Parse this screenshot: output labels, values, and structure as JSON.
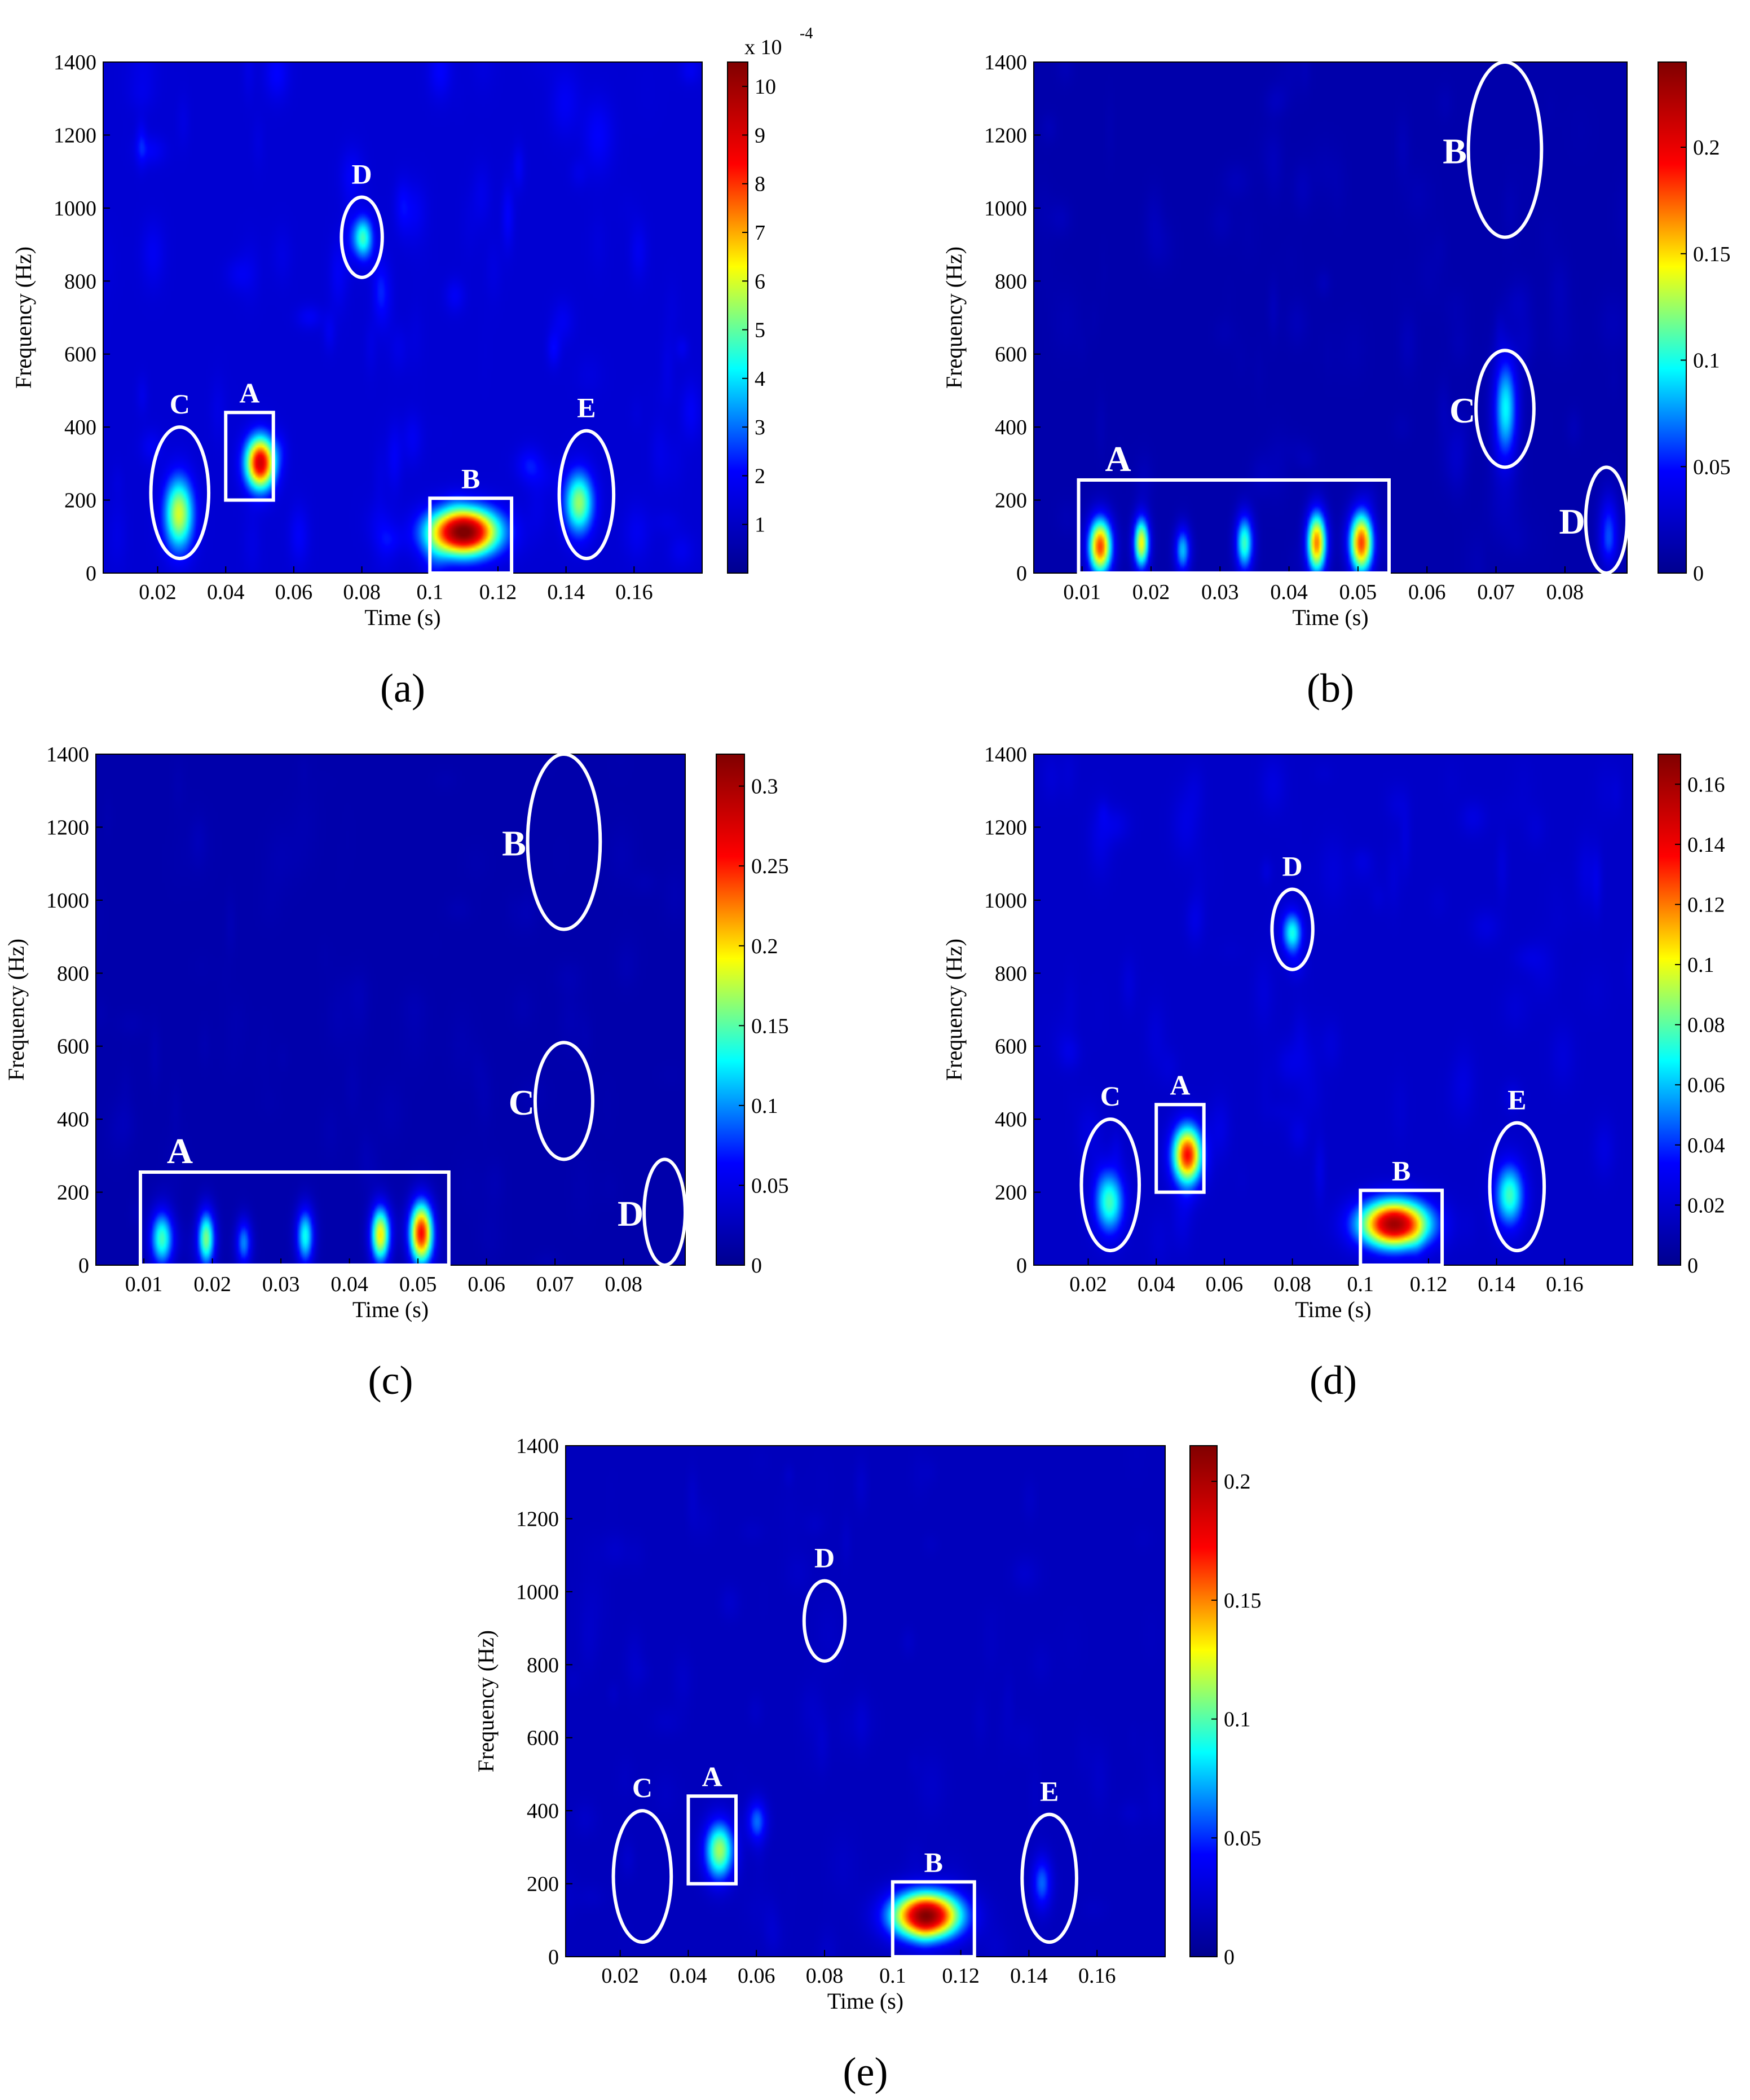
{
  "colormap": [
    "#00008f",
    "#0000ff",
    "#00ffff",
    "#ffff00",
    "#ff0000",
    "#800000"
  ],
  "frame_color": "#ffffff",
  "chart_data": [
    {
      "type": "heatmap",
      "panel_label": "(a)",
      "xlabel": "Time (s)",
      "ylabel": "Frequency (Hz)",
      "xlim": [
        0.004,
        0.18
      ],
      "ylim": [
        0,
        1400
      ],
      "xticks": [
        "0.02",
        "0.04",
        "0.06",
        "0.08",
        "0.1",
        "0.12",
        "0.14",
        "0.16"
      ],
      "yticks": [
        "0",
        "200",
        "400",
        "600",
        "800",
        "1000",
        "1200",
        "1400"
      ],
      "colorbar": {
        "min": 0,
        "max": 10.5,
        "ticks": [
          "1",
          "2",
          "3",
          "4",
          "5",
          "6",
          "7",
          "8",
          "9",
          "10"
        ],
        "multiplier": "x 10",
        "exponent": "-4"
      },
      "background_level": 0.12,
      "noise_level": 0.08,
      "blobs": [
        {
          "t": 0.026,
          "f": 160,
          "st": 0.003,
          "sf": 70,
          "v": 0.45
        },
        {
          "t": 0.05,
          "f": 300,
          "st": 0.003,
          "sf": 50,
          "v": 0.75
        },
        {
          "t": 0.11,
          "f": 110,
          "st": 0.007,
          "sf": 45,
          "v": 0.9
        },
        {
          "t": 0.144,
          "f": 190,
          "st": 0.003,
          "sf": 60,
          "v": 0.4
        },
        {
          "t": 0.08,
          "f": 920,
          "st": 0.002,
          "sf": 40,
          "v": 0.3
        }
      ],
      "annotations": [
        {
          "label": "A",
          "shape": "rect",
          "t0": 0.04,
          "t1": 0.054,
          "f0": 200,
          "f1": 440
        },
        {
          "label": "B",
          "shape": "rect",
          "t0": 0.1,
          "t1": 0.124,
          "f0": 0,
          "f1": 205
        },
        {
          "label": "C",
          "shape": "ellipse",
          "t": 0.0265,
          "f": 220,
          "rt": 0.0085,
          "rf": 180
        },
        {
          "label": "D",
          "shape": "ellipse",
          "t": 0.08,
          "f": 920,
          "rt": 0.006,
          "rf": 110
        },
        {
          "label": "E",
          "shape": "ellipse",
          "t": 0.146,
          "f": 215,
          "rt": 0.008,
          "rf": 175
        }
      ]
    },
    {
      "type": "heatmap",
      "panel_label": "(b)",
      "xlabel": "Time (s)",
      "ylabel": "Frequency (Hz)",
      "xlim": [
        0.003,
        0.089
      ],
      "ylim": [
        0,
        1400
      ],
      "xticks": [
        "0.01",
        "0.02",
        "0.03",
        "0.04",
        "0.05",
        "0.06",
        "0.07",
        "0.08"
      ],
      "yticks": [
        "0",
        "200",
        "400",
        "600",
        "800",
        "1000",
        "1200",
        "1400"
      ],
      "colorbar": {
        "min": 0,
        "max": 0.24,
        "ticks": [
          "0",
          "0.05",
          "0.1",
          "0.15",
          "0.2"
        ]
      },
      "background_level": 0.05,
      "noise_level": 0.03,
      "blobs": [
        {
          "t": 0.0125,
          "f": 70,
          "st": 0.0012,
          "sf": 55,
          "v": 0.7
        },
        {
          "t": 0.0185,
          "f": 80,
          "st": 0.0008,
          "sf": 50,
          "v": 0.55
        },
        {
          "t": 0.0245,
          "f": 60,
          "st": 0.0008,
          "sf": 45,
          "v": 0.3
        },
        {
          "t": 0.0335,
          "f": 80,
          "st": 0.0009,
          "sf": 55,
          "v": 0.4
        },
        {
          "t": 0.044,
          "f": 80,
          "st": 0.001,
          "sf": 60,
          "v": 0.65
        },
        {
          "t": 0.0505,
          "f": 80,
          "st": 0.0012,
          "sf": 60,
          "v": 0.7
        },
        {
          "t": 0.0715,
          "f": 450,
          "st": 0.0012,
          "sf": 100,
          "v": 0.35
        },
        {
          "t": 0.0865,
          "f": 110,
          "st": 0.001,
          "sf": 70,
          "v": 0.2
        }
      ],
      "annotations": [
        {
          "label": "A",
          "shape": "rect",
          "t0": 0.0095,
          "t1": 0.0545,
          "f0": 0,
          "f1": 255
        },
        {
          "label": "B",
          "shape": "ellipse",
          "t": 0.0713,
          "f": 1160,
          "rt": 0.0053,
          "rf": 240
        },
        {
          "label": "C",
          "shape": "ellipse",
          "t": 0.0713,
          "f": 450,
          "rt": 0.0042,
          "rf": 160
        },
        {
          "label": "D",
          "shape": "ellipse",
          "t": 0.086,
          "f": 145,
          "rt": 0.003,
          "rf": 145
        }
      ]
    },
    {
      "type": "heatmap",
      "panel_label": "(c)",
      "xlabel": "Time (s)",
      "ylabel": "Frequency (Hz)",
      "xlim": [
        0.003,
        0.089
      ],
      "ylim": [
        0,
        1400
      ],
      "xticks": [
        "0.01",
        "0.02",
        "0.03",
        "0.04",
        "0.05",
        "0.06",
        "0.07",
        "0.08"
      ],
      "yticks": [
        "0",
        "200",
        "400",
        "600",
        "800",
        "1000",
        "1200",
        "1400"
      ],
      "colorbar": {
        "min": 0,
        "max": 0.32,
        "ticks": [
          "0",
          "0.05",
          "0.1",
          "0.15",
          "0.2",
          "0.25",
          "0.3"
        ]
      },
      "background_level": 0.05,
      "noise_level": 0.02,
      "blobs": [
        {
          "t": 0.0125,
          "f": 70,
          "st": 0.0012,
          "sf": 55,
          "v": 0.4
        },
        {
          "t": 0.019,
          "f": 70,
          "st": 0.0009,
          "sf": 55,
          "v": 0.45
        },
        {
          "t": 0.0245,
          "f": 60,
          "st": 0.0008,
          "sf": 45,
          "v": 0.25
        },
        {
          "t": 0.0335,
          "f": 75,
          "st": 0.0009,
          "sf": 55,
          "v": 0.35
        },
        {
          "t": 0.0445,
          "f": 80,
          "st": 0.001,
          "sf": 55,
          "v": 0.55
        },
        {
          "t": 0.0505,
          "f": 85,
          "st": 0.0012,
          "sf": 60,
          "v": 0.75
        }
      ],
      "annotations": [
        {
          "label": "A",
          "shape": "rect",
          "t0": 0.0095,
          "t1": 0.0545,
          "f0": 0,
          "f1": 255
        },
        {
          "label": "B",
          "shape": "ellipse",
          "t": 0.0713,
          "f": 1160,
          "rt": 0.0053,
          "rf": 240
        },
        {
          "label": "C",
          "shape": "ellipse",
          "t": 0.0713,
          "f": 450,
          "rt": 0.0042,
          "rf": 160
        },
        {
          "label": "D",
          "shape": "ellipse",
          "t": 0.086,
          "f": 145,
          "rt": 0.003,
          "rf": 145
        }
      ]
    },
    {
      "type": "heatmap",
      "panel_label": "(d)",
      "xlabel": "Time (s)",
      "ylabel": "Frequency (Hz)",
      "xlim": [
        0.004,
        0.18
      ],
      "ylim": [
        0,
        1400
      ],
      "xticks": [
        "0.02",
        "0.04",
        "0.06",
        "0.08",
        "0.1",
        "0.12",
        "0.14",
        "0.16"
      ],
      "yticks": [
        "0",
        "200",
        "400",
        "600",
        "800",
        "1000",
        "1200",
        "1400"
      ],
      "colorbar": {
        "min": 0,
        "max": 0.17,
        "ticks": [
          "0",
          "0.02",
          "0.04",
          "0.06",
          "0.08",
          "0.1",
          "0.12",
          "0.14",
          "0.16"
        ]
      },
      "background_level": 0.1,
      "noise_level": 0.05,
      "blobs": [
        {
          "t": 0.026,
          "f": 170,
          "st": 0.003,
          "sf": 60,
          "v": 0.35
        },
        {
          "t": 0.049,
          "f": 300,
          "st": 0.003,
          "sf": 55,
          "v": 0.7
        },
        {
          "t": 0.11,
          "f": 110,
          "st": 0.007,
          "sf": 45,
          "v": 0.85
        },
        {
          "t": 0.144,
          "f": 190,
          "st": 0.003,
          "sf": 60,
          "v": 0.35
        },
        {
          "t": 0.08,
          "f": 910,
          "st": 0.002,
          "sf": 40,
          "v": 0.3
        }
      ],
      "annotations": [
        {
          "label": "A",
          "shape": "rect",
          "t0": 0.04,
          "t1": 0.054,
          "f0": 200,
          "f1": 440
        },
        {
          "label": "B",
          "shape": "rect",
          "t0": 0.1,
          "t1": 0.124,
          "f0": 0,
          "f1": 205
        },
        {
          "label": "C",
          "shape": "ellipse",
          "t": 0.0265,
          "f": 220,
          "rt": 0.0085,
          "rf": 180
        },
        {
          "label": "D",
          "shape": "ellipse",
          "t": 0.08,
          "f": 920,
          "rt": 0.006,
          "rf": 110
        },
        {
          "label": "E",
          "shape": "ellipse",
          "t": 0.146,
          "f": 215,
          "rt": 0.008,
          "rf": 175
        }
      ]
    },
    {
      "type": "heatmap",
      "panel_label": "(e)",
      "xlabel": "Time (s)",
      "ylabel": "Frequency (Hz)",
      "xlim": [
        0.004,
        0.18
      ],
      "ylim": [
        0,
        1400
      ],
      "xticks": [
        "0.02",
        "0.04",
        "0.06",
        "0.08",
        "0.1",
        "0.12",
        "0.14",
        "0.16"
      ],
      "yticks": [
        "0",
        "200",
        "400",
        "600",
        "800",
        "1000",
        "1200",
        "1400"
      ],
      "colorbar": {
        "min": 0,
        "max": 0.215,
        "ticks": [
          "0",
          "0.05",
          "0.1",
          "0.15",
          "0.2"
        ]
      },
      "background_level": 0.08,
      "noise_level": 0.03,
      "blobs": [
        {
          "t": 0.049,
          "f": 290,
          "st": 0.003,
          "sf": 55,
          "v": 0.45
        },
        {
          "t": 0.11,
          "f": 110,
          "st": 0.007,
          "sf": 45,
          "v": 0.9
        },
        {
          "t": 0.144,
          "f": 200,
          "st": 0.002,
          "sf": 50,
          "v": 0.2
        },
        {
          "t": 0.06,
          "f": 370,
          "st": 0.002,
          "sf": 40,
          "v": 0.2
        }
      ],
      "annotations": [
        {
          "label": "A",
          "shape": "rect",
          "t0": 0.04,
          "t1": 0.054,
          "f0": 200,
          "f1": 440
        },
        {
          "label": "B",
          "shape": "rect",
          "t0": 0.1,
          "t1": 0.124,
          "f0": 0,
          "f1": 205
        },
        {
          "label": "C",
          "shape": "ellipse",
          "t": 0.0265,
          "f": 220,
          "rt": 0.0085,
          "rf": 180
        },
        {
          "label": "D",
          "shape": "ellipse",
          "t": 0.08,
          "f": 920,
          "rt": 0.006,
          "rf": 110
        },
        {
          "label": "E",
          "shape": "ellipse",
          "t": 0.146,
          "f": 215,
          "rt": 0.008,
          "rf": 175
        }
      ]
    }
  ]
}
